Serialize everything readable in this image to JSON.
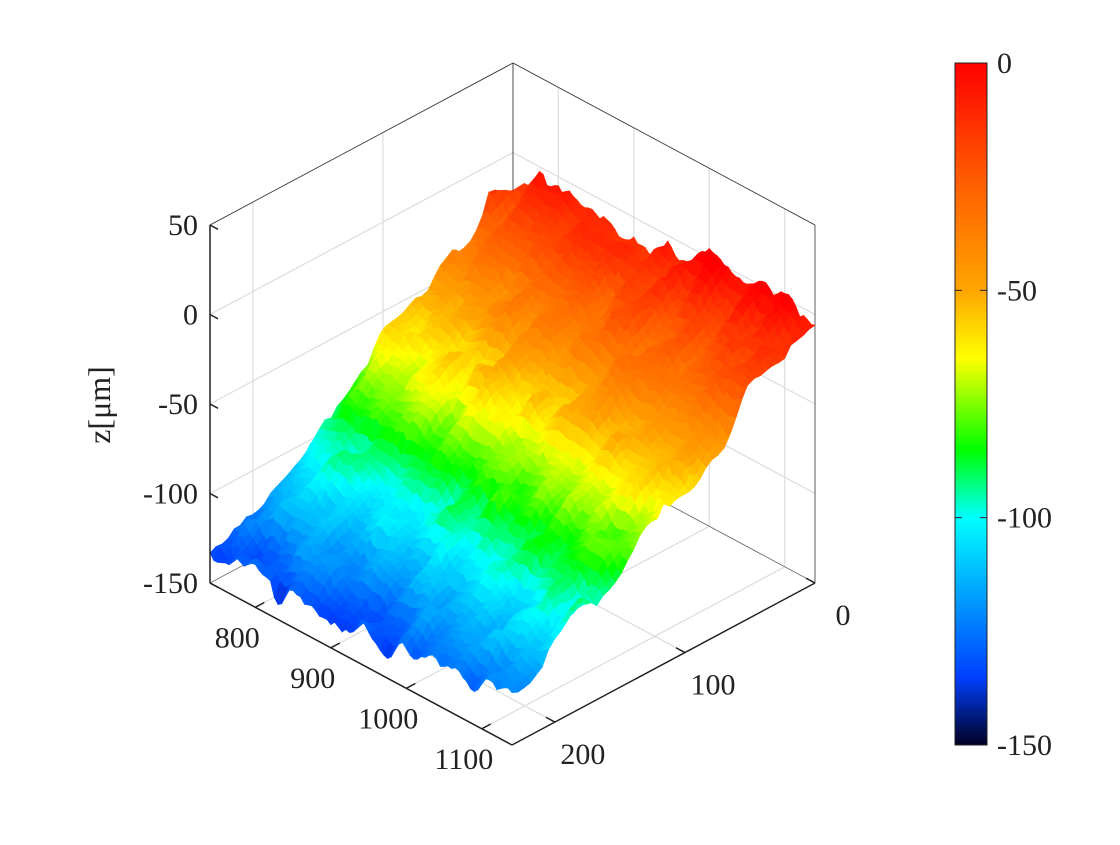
{
  "chart_data": {
    "type": "surface",
    "title": "",
    "xlabel": "",
    "ylabel": "",
    "zlabel": "z[μm]",
    "xlim": [
      740,
      1140
    ],
    "ylim": [
      0,
      233
    ],
    "zlim": [
      -150,
      50
    ],
    "xticks": [
      800,
      900,
      1000,
      1100
    ],
    "yticks": [
      0,
      100,
      200
    ],
    "zticks": [
      50,
      0,
      -50,
      -100,
      -150
    ],
    "xtick_labels": [
      "800",
      "900",
      "1000",
      "1100"
    ],
    "ytick_labels": [
      "0",
      "100",
      "200"
    ],
    "ztick_labels": [
      "50",
      "0",
      "-50",
      "-100",
      "-150"
    ],
    "grid": true,
    "surface_trend": {
      "z_at_xmin_ymin": -12,
      "z_at_xmax_ymin": 0,
      "z_at_xmin_ymax": -137,
      "z_at_xmax_ymax": -125,
      "roughness_amplitude": 8
    },
    "colormap": "jet",
    "colorbar": {
      "placement": "right",
      "range": [
        -150,
        0
      ],
      "ticks": [
        0,
        -50,
        -100,
        -150
      ],
      "tick_labels": [
        "0",
        "-50",
        "-100",
        "-150"
      ],
      "stops": [
        {
          "value": 0,
          "color": "#ff0000"
        },
        {
          "value": -25,
          "color": "#ff5a00"
        },
        {
          "value": -50,
          "color": "#ffa500"
        },
        {
          "value": -65,
          "color": "#ffff00"
        },
        {
          "value": -85,
          "color": "#00ff00"
        },
        {
          "value": -100,
          "color": "#00ffff"
        },
        {
          "value": -120,
          "color": "#0090ff"
        },
        {
          "value": -135,
          "color": "#0040ff"
        },
        {
          "value": -150,
          "color": "#000022"
        }
      ]
    }
  }
}
